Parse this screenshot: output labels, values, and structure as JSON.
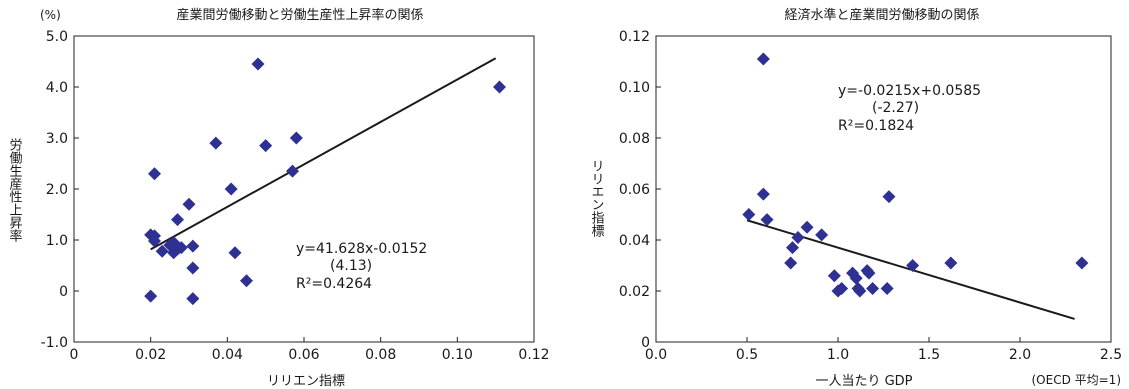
{
  "chart_data": [
    {
      "type": "scatter",
      "title": "産業間労働移動と労働生産性上昇率の関係",
      "unit_label": "(%)",
      "xlabel": "リリエン指標",
      "ylabel": "労働生産性上昇率",
      "xlim": [
        0,
        0.12
      ],
      "ylim": [
        -1.0,
        5.0
      ],
      "xticks": [
        "0",
        "0.02",
        "0.04",
        "0.06",
        "0.08",
        "0.10",
        "0.12"
      ],
      "yticks": [
        "-1.0",
        "0",
        "1.0",
        "2.0",
        "3.0",
        "4.0",
        "5.0"
      ],
      "grid": false,
      "marker_color": "#2e3192",
      "trend_color": "#1a1a1a",
      "points": [
        [
          0.02,
          1.1
        ],
        [
          0.021,
          1.08
        ],
        [
          0.021,
          0.98
        ],
        [
          0.021,
          2.3
        ],
        [
          0.023,
          0.78
        ],
        [
          0.025,
          0.9
        ],
        [
          0.026,
          0.75
        ],
        [
          0.026,
          0.95
        ],
        [
          0.027,
          1.4
        ],
        [
          0.027,
          0.82
        ],
        [
          0.028,
          0.85
        ],
        [
          0.03,
          1.7
        ],
        [
          0.031,
          0.88
        ],
        [
          0.031,
          0.45
        ],
        [
          0.031,
          -0.15
        ],
        [
          0.02,
          -0.1
        ],
        [
          0.037,
          2.9
        ],
        [
          0.041,
          2.0
        ],
        [
          0.042,
          0.75
        ],
        [
          0.045,
          0.2
        ],
        [
          0.048,
          4.45
        ],
        [
          0.05,
          2.85
        ],
        [
          0.057,
          2.35
        ],
        [
          0.058,
          3.0
        ],
        [
          0.111,
          4.0
        ]
      ],
      "trendline": {
        "x": [
          0.02,
          0.11
        ]
      },
      "equation": "y=41.628x-0.0152",
      "t_value": "(4.13)",
      "r2": "R²=0.4264"
    },
    {
      "type": "scatter",
      "title": "経済水準と産業間労働移動の関係",
      "xlabel": "一人当たり GDP",
      "xlabel_note": "(OECD 平均=1)",
      "ylabel": "リリエン指標",
      "xlim": [
        0,
        2.5
      ],
      "ylim": [
        0,
        0.12
      ],
      "xticks": [
        "0.0",
        "0.5",
        "1.0",
        "1.5",
        "2.0",
        "2.5"
      ],
      "yticks": [
        "0",
        "0.02",
        "0.04",
        "0.06",
        "0.08",
        "0.10",
        "0.12"
      ],
      "grid": false,
      "marker_color": "#2e3192",
      "trend_color": "#1a1a1a",
      "points": [
        [
          0.51,
          0.05
        ],
        [
          0.59,
          0.111
        ],
        [
          0.59,
          0.058
        ],
        [
          0.61,
          0.048
        ],
        [
          0.74,
          0.031
        ],
        [
          0.75,
          0.037
        ],
        [
          0.78,
          0.041
        ],
        [
          0.83,
          0.045
        ],
        [
          0.91,
          0.042
        ],
        [
          0.98,
          0.026
        ],
        [
          1.0,
          0.02
        ],
        [
          1.02,
          0.021
        ],
        [
          1.08,
          0.027
        ],
        [
          1.1,
          0.025
        ],
        [
          1.11,
          0.021
        ],
        [
          1.12,
          0.02
        ],
        [
          1.16,
          0.028
        ],
        [
          1.17,
          0.027
        ],
        [
          1.19,
          0.021
        ],
        [
          1.27,
          0.021
        ],
        [
          1.28,
          0.057
        ],
        [
          1.41,
          0.03
        ],
        [
          1.62,
          0.031
        ],
        [
          2.34,
          0.031
        ]
      ],
      "trendline": {
        "x": [
          0.5,
          2.3
        ]
      },
      "equation": "y=-0.0215x+0.0585",
      "t_value": "(-2.27)",
      "r2": "R²=0.1824"
    }
  ]
}
